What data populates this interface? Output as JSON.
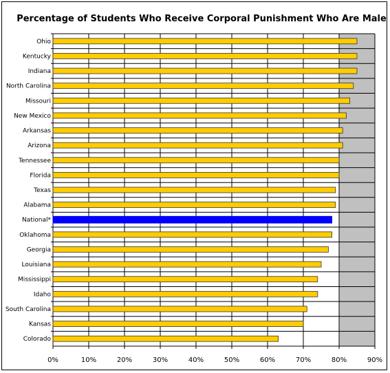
{
  "chart_data": {
    "type": "bar",
    "orientation": "horizontal",
    "title": "Percentage of Students Who Receive Corporal Punishment Who Are Male",
    "categories": [
      "Ohio",
      "Kentucky",
      "Indiana",
      "North Carolina",
      "Missouri",
      "New Mexico",
      "Arkansas",
      "Arizona",
      "Tennessee",
      "Florida",
      "Texas",
      "Alabama",
      "National*",
      "Oklahoma",
      "Georgia",
      "Louisiana",
      "Mississippi",
      "Idaho",
      "South Carolina",
      "Kansas",
      "Colorado"
    ],
    "values": [
      85,
      85,
      85,
      84,
      83,
      82,
      81,
      81,
      80,
      80,
      79,
      79,
      78,
      78,
      77,
      75,
      74,
      74,
      71,
      70,
      63
    ],
    "xlim": [
      0,
      90
    ],
    "xticks": [
      "0%",
      "10%",
      "20%",
      "30%",
      "40%",
      "50%",
      "60%",
      "70%",
      "80%",
      "90%"
    ],
    "grid": true,
    "colors": {
      "bar": "#FFCC00",
      "bar_border": "#333333",
      "highlight": "#0000FF",
      "plot_bg": "#C0C0C0",
      "gridline": "#000000"
    },
    "highlight_category": "National*"
  }
}
